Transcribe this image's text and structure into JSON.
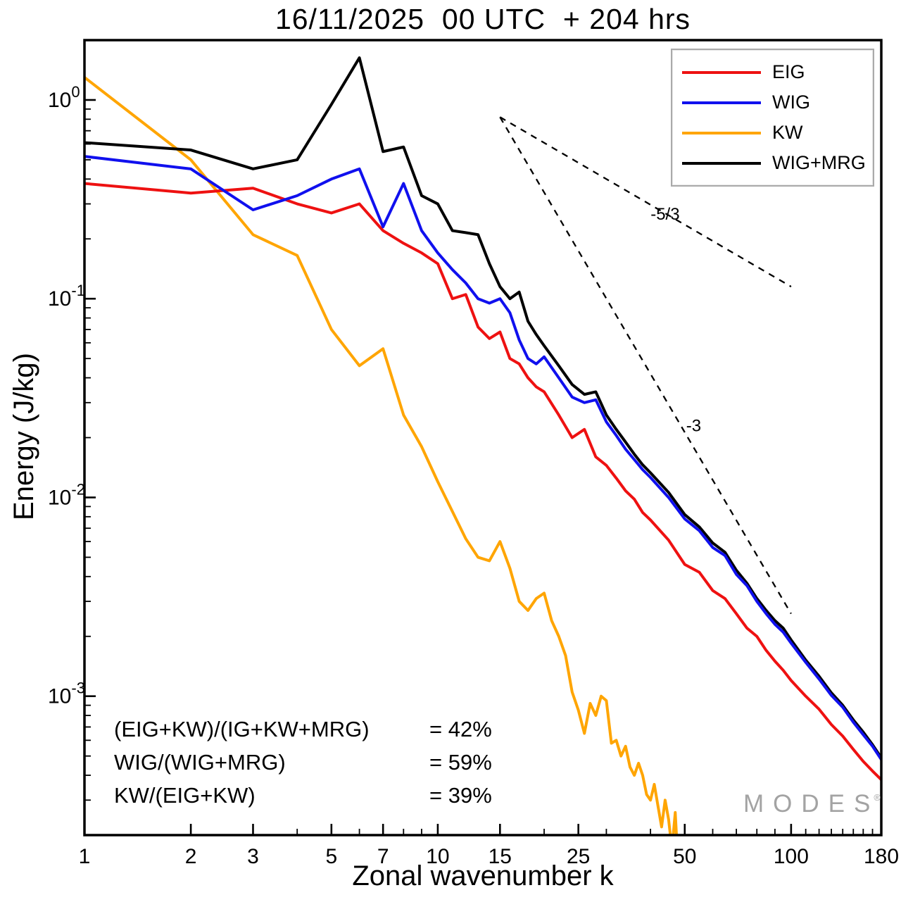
{
  "title": "16/11/2025  00 UTC  + 204 hrs",
  "watermark": {
    "text": "MODES",
    "mark": "®"
  },
  "stats": {
    "rows": [
      {
        "lhs": "(EIG+KW)/(IG+KW+MRG)",
        "rhs": "= 42%"
      },
      {
        "lhs": "WIG/(WIG+MRG)",
        "rhs": "= 59%"
      },
      {
        "lhs": "KW/(EIG+KW)",
        "rhs": "= 39%"
      }
    ]
  },
  "chart_data": {
    "type": "line",
    "title": "16/11/2025  00 UTC  + 204 hrs",
    "xlabel": "Zonal wavenumber k",
    "ylabel": "Energy (J/kg)",
    "xscale": "log",
    "yscale": "log",
    "xlim": [
      1,
      180
    ],
    "ylim": [
      0.0002,
      2.0
    ],
    "grid": false,
    "legend_position": "top-right",
    "xticks": {
      "labeled": [
        1,
        2,
        3,
        5,
        7,
        10,
        15,
        25,
        50,
        100,
        180
      ],
      "minor": [
        4,
        6,
        8,
        9,
        20,
        30,
        40,
        60,
        70,
        80,
        90,
        110,
        120,
        130,
        140,
        150,
        160,
        170
      ]
    },
    "yticks": {
      "major_exponents": [
        0,
        -1,
        -2,
        -3
      ]
    },
    "series": [
      {
        "name": "EIG",
        "color": "#ee1111",
        "z": 3,
        "points": [
          [
            1,
            0.38
          ],
          [
            2,
            0.34
          ],
          [
            3,
            0.36
          ],
          [
            4,
            0.3
          ],
          [
            5,
            0.27
          ],
          [
            6,
            0.3
          ],
          [
            7,
            0.22
          ],
          [
            8,
            0.19
          ],
          [
            9,
            0.17
          ],
          [
            10,
            0.15
          ],
          [
            11,
            0.1
          ],
          [
            12,
            0.105
          ],
          [
            13,
            0.072
          ],
          [
            14,
            0.063
          ],
          [
            15,
            0.068
          ],
          [
            16,
            0.05
          ],
          [
            17,
            0.047
          ],
          [
            18,
            0.04
          ],
          [
            19,
            0.036
          ],
          [
            20,
            0.034
          ],
          [
            22,
            0.026
          ],
          [
            24,
            0.02
          ],
          [
            26,
            0.022
          ],
          [
            28,
            0.016
          ],
          [
            30,
            0.0145
          ],
          [
            32,
            0.0125
          ],
          [
            34,
            0.0108
          ],
          [
            36,
            0.0098
          ],
          [
            38,
            0.0084
          ],
          [
            40,
            0.0077
          ],
          [
            45,
            0.0061
          ],
          [
            50,
            0.0046
          ],
          [
            55,
            0.0042
          ],
          [
            60,
            0.0034
          ],
          [
            65,
            0.0031
          ],
          [
            70,
            0.0026
          ],
          [
            75,
            0.0022
          ],
          [
            80,
            0.002
          ],
          [
            85,
            0.0017
          ],
          [
            90,
            0.0015
          ],
          [
            95,
            0.00135
          ],
          [
            100,
            0.0012
          ],
          [
            110,
            0.001
          ],
          [
            120,
            0.00086
          ],
          [
            130,
            0.00072
          ],
          [
            140,
            0.00063
          ],
          [
            150,
            0.00054
          ],
          [
            160,
            0.00047
          ],
          [
            170,
            0.00042
          ],
          [
            180,
            0.00038
          ]
        ]
      },
      {
        "name": "WIG",
        "color": "#1010ee",
        "z": 4,
        "points": [
          [
            1,
            0.52
          ],
          [
            2,
            0.45
          ],
          [
            3,
            0.28
          ],
          [
            4,
            0.33
          ],
          [
            5,
            0.4
          ],
          [
            6,
            0.45
          ],
          [
            7,
            0.23
          ],
          [
            8,
            0.38
          ],
          [
            9,
            0.22
          ],
          [
            10,
            0.17
          ],
          [
            11,
            0.14
          ],
          [
            12,
            0.12
          ],
          [
            13,
            0.1
          ],
          [
            14,
            0.095
          ],
          [
            15,
            0.1
          ],
          [
            16,
            0.085
          ],
          [
            17,
            0.062
          ],
          [
            18,
            0.05
          ],
          [
            19,
            0.047
          ],
          [
            20,
            0.051
          ],
          [
            22,
            0.04
          ],
          [
            24,
            0.032
          ],
          [
            26,
            0.03
          ],
          [
            28,
            0.031
          ],
          [
            30,
            0.024
          ],
          [
            32,
            0.0205
          ],
          [
            34,
            0.0175
          ],
          [
            36,
            0.0155
          ],
          [
            38,
            0.0138
          ],
          [
            40,
            0.0126
          ],
          [
            45,
            0.01
          ],
          [
            50,
            0.0078
          ],
          [
            55,
            0.0068
          ],
          [
            60,
            0.0056
          ],
          [
            65,
            0.0051
          ],
          [
            70,
            0.0041
          ],
          [
            75,
            0.0036
          ],
          [
            80,
            0.003
          ],
          [
            85,
            0.0026
          ],
          [
            90,
            0.0023
          ],
          [
            95,
            0.0021
          ],
          [
            100,
            0.00185
          ],
          [
            110,
            0.00148
          ],
          [
            120,
            0.00122
          ],
          [
            130,
            0.00101
          ],
          [
            140,
            0.00088
          ],
          [
            150,
            0.00074
          ],
          [
            160,
            0.00064
          ],
          [
            170,
            0.00056
          ],
          [
            180,
            0.00048
          ]
        ]
      },
      {
        "name": "KW",
        "color": "#ffa502",
        "z": 1,
        "points": [
          [
            1,
            1.3
          ],
          [
            2,
            0.5
          ],
          [
            3,
            0.21
          ],
          [
            4,
            0.165
          ],
          [
            5,
            0.07
          ],
          [
            6,
            0.046
          ],
          [
            7,
            0.056
          ],
          [
            8,
            0.026
          ],
          [
            9,
            0.018
          ],
          [
            10,
            0.012
          ],
          [
            11,
            0.0085
          ],
          [
            12,
            0.0062
          ],
          [
            13,
            0.005
          ],
          [
            14,
            0.0048
          ],
          [
            15,
            0.006
          ],
          [
            16,
            0.0044
          ],
          [
            17,
            0.003
          ],
          [
            18,
            0.0027
          ],
          [
            19,
            0.0031
          ],
          [
            20,
            0.0033
          ],
          [
            21,
            0.0024
          ],
          [
            22,
            0.002
          ],
          [
            23,
            0.0016
          ],
          [
            24,
            0.00105
          ],
          [
            25,
            0.00085
          ],
          [
            26,
            0.00065
          ],
          [
            27,
            0.00092
          ],
          [
            28,
            0.0008
          ],
          [
            29,
            0.001
          ],
          [
            30,
            0.00095
          ],
          [
            31,
            0.00058
          ],
          [
            32,
            0.0006
          ],
          [
            33,
            0.0005
          ],
          [
            34,
            0.00056
          ],
          [
            35,
            0.00044
          ],
          [
            36,
            0.0004
          ],
          [
            37,
            0.00046
          ],
          [
            38,
            0.0004
          ],
          [
            39,
            0.00032
          ],
          [
            40,
            0.0003
          ],
          [
            41,
            0.00036
          ],
          [
            42,
            0.00028
          ],
          [
            43,
            0.00022
          ],
          [
            44,
            0.0003
          ],
          [
            45,
            0.00024
          ],
          [
            46,
            0.00017
          ],
          [
            47,
            0.00026
          ],
          [
            48,
            0.00013
          ]
        ]
      },
      {
        "name": "WIG+MRG",
        "color": "#000000",
        "z": 2,
        "points": [
          [
            1,
            0.61
          ],
          [
            2,
            0.56
          ],
          [
            3,
            0.45
          ],
          [
            4,
            0.5
          ],
          [
            5,
            0.95
          ],
          [
            6,
            1.63
          ],
          [
            7,
            0.55
          ],
          [
            8,
            0.58
          ],
          [
            9,
            0.33
          ],
          [
            10,
            0.3
          ],
          [
            11,
            0.22
          ],
          [
            12,
            0.215
          ],
          [
            13,
            0.21
          ],
          [
            14,
            0.15
          ],
          [
            15,
            0.115
          ],
          [
            16,
            0.1
          ],
          [
            17,
            0.108
          ],
          [
            18,
            0.077
          ],
          [
            19,
            0.066
          ],
          [
            20,
            0.058
          ],
          [
            22,
            0.046
          ],
          [
            24,
            0.037
          ],
          [
            26,
            0.033
          ],
          [
            28,
            0.034
          ],
          [
            30,
            0.026
          ],
          [
            32,
            0.022
          ],
          [
            34,
            0.019
          ],
          [
            36,
            0.0165
          ],
          [
            38,
            0.0146
          ],
          [
            40,
            0.0133
          ],
          [
            45,
            0.0106
          ],
          [
            50,
            0.0082
          ],
          [
            55,
            0.0071
          ],
          [
            60,
            0.0059
          ],
          [
            65,
            0.0053
          ],
          [
            70,
            0.0043
          ],
          [
            75,
            0.0037
          ],
          [
            80,
            0.0031
          ],
          [
            85,
            0.0027
          ],
          [
            90,
            0.0024
          ],
          [
            95,
            0.0022
          ],
          [
            100,
            0.00192
          ],
          [
            110,
            0.00152
          ],
          [
            120,
            0.00126
          ],
          [
            130,
            0.00104
          ],
          [
            140,
            0.0009
          ],
          [
            150,
            0.00076
          ],
          [
            160,
            0.00066
          ],
          [
            170,
            0.00057
          ],
          [
            180,
            0.00049
          ]
        ]
      }
    ],
    "annotations": {
      "lines": [
        {
          "label": "-5/3",
          "from": [
            15,
            0.82
          ],
          "to": [
            100,
            0.115
          ],
          "label_at": [
            44,
            0.25
          ]
        },
        {
          "label": "-3",
          "from": [
            15,
            0.82
          ],
          "to": [
            100,
            0.0026
          ],
          "label_at": [
            53,
            0.0215
          ]
        }
      ]
    }
  }
}
